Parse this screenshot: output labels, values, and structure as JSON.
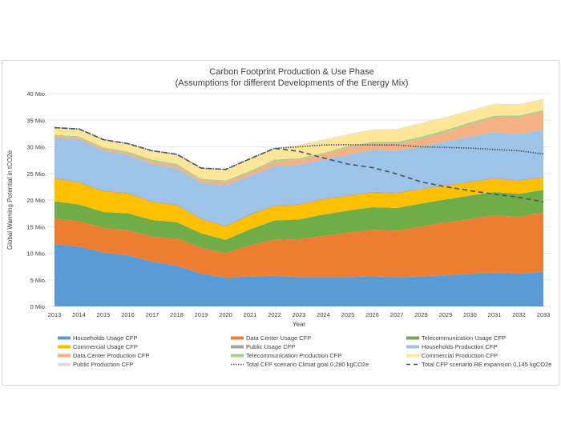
{
  "chart_data": {
    "type": "area",
    "stacked": true,
    "title": "Carbon Footprint Production & Use Phase",
    "subtitle": "(Assumptions for different Developments of the Energy Mix)",
    "xlabel": "Year",
    "ylabel": "Global Warming Potential in tCO2e",
    "ylim": [
      0,
      40
    ],
    "yticks": [
      "0 Mio.",
      "5 Mio.",
      "10 Mio.",
      "15 Mio.",
      "20 Mio.",
      "25 Mio.",
      "30 Mio.",
      "35 Mio.",
      "40 Mio."
    ],
    "ytick_values": [
      0,
      5,
      10,
      15,
      20,
      25,
      30,
      35,
      40
    ],
    "grid": "horizontal",
    "legend_position": "bottom",
    "categories": [
      "2013",
      "2014",
      "2015",
      "2016",
      "2017",
      "2018",
      "2019",
      "2020",
      "2021",
      "2022",
      "2023",
      "2024",
      "2025",
      "2026",
      "2027",
      "2028",
      "2029",
      "2030",
      "2031",
      "2032",
      "2033"
    ],
    "series": [
      {
        "name": "Households Usage CFP",
        "color": "#5b9bd5",
        "values": [
          11.75,
          11.25,
          10.15,
          9.6,
          8.4,
          7.65,
          6.15,
          5.4,
          5.65,
          5.75,
          5.5,
          5.5,
          5.5,
          5.65,
          5.5,
          5.65,
          5.85,
          6.1,
          6.35,
          6.15,
          6.5
        ]
      },
      {
        "name": "Data Center Usage CFP",
        "color": "#ed7d31",
        "values": [
          4.75,
          4.75,
          4.6,
          4.75,
          4.7,
          5.1,
          4.85,
          4.6,
          5.85,
          6.75,
          7.15,
          7.75,
          8.35,
          8.7,
          8.75,
          9.35,
          9.9,
          10.3,
          10.75,
          10.7,
          11.15
        ]
      },
      {
        "name": "Telecommunication Usage CFP",
        "color": "#70ad47",
        "values": [
          3.25,
          3.15,
          3,
          3.15,
          3.15,
          3.1,
          2.75,
          2.5,
          3,
          3.65,
          3.7,
          4,
          4.15,
          4.3,
          4.25,
          4.35,
          4.35,
          4.45,
          4.4,
          4.3,
          4.25
        ]
      },
      {
        "name": "Commercial Usage CFP",
        "color": "#ffc000",
        "values": [
          4.25,
          4.1,
          3.85,
          3.75,
          3.35,
          3.15,
          2.65,
          2.5,
          2.65,
          2.7,
          2.75,
          2.85,
          2.75,
          2.75,
          2.75,
          2.65,
          2.55,
          2.5,
          2.5,
          2.45,
          2.35
        ]
      },
      {
        "name": "Public Usage CFP",
        "color": "#a5a5a5",
        "values": [
          0.2,
          0.15,
          0.15,
          0.15,
          0.15,
          0.15,
          0.15,
          0.15,
          0.2,
          0.15,
          0.15,
          0.15,
          0.15,
          0.15,
          0.15,
          0.15,
          0.15,
          0.15,
          0.15,
          0.15,
          0.15
        ]
      },
      {
        "name": "Households Production CFP",
        "color": "#9dc3e6",
        "values": [
          7.4,
          8.1,
          7.5,
          7.1,
          7,
          6.85,
          6.7,
          7.6,
          7.15,
          7.35,
          7.35,
          7.35,
          7.6,
          7.8,
          7.85,
          7.85,
          8.2,
          8.4,
          8.6,
          8.6,
          8.85
        ]
      },
      {
        "name": "Data Center Production CFP",
        "color": "#f4b183",
        "values": [
          0.4,
          0.35,
          0.4,
          0.35,
          0.5,
          0.5,
          0.5,
          0.6,
          0.65,
          0.9,
          1,
          1,
          1.4,
          1.25,
          1.25,
          1.5,
          1.75,
          2.35,
          2.75,
          3.25,
          3.35
        ]
      },
      {
        "name": "Telecommunication Production CFP",
        "color": "#a9d18e",
        "values": [
          0.25,
          0.15,
          0.25,
          0.25,
          0.35,
          0.3,
          0.25,
          0.3,
          0.3,
          0.35,
          0.25,
          0.25,
          0.25,
          0.3,
          0.4,
          0.4,
          0.4,
          0.35,
          0.35,
          0.3,
          0.3
        ]
      },
      {
        "name": "Commercial Production CFP",
        "color": "#ffe699",
        "values": [
          1.25,
          1.25,
          1.35,
          1.4,
          1.55,
          1.7,
          1.9,
          2,
          2.15,
          2,
          2.4,
          2.4,
          2.1,
          2.25,
          2.35,
          2.5,
          2.35,
          2.15,
          2.15,
          2,
          2
        ]
      },
      {
        "name": "Public Production CFP",
        "color": "#dbdbdb",
        "values": [
          0.1,
          0.1,
          0.1,
          0.1,
          0.1,
          0.1,
          0.1,
          0.1,
          0.1,
          0.1,
          0.1,
          0.1,
          0.1,
          0.1,
          0.1,
          0.1,
          0.1,
          0.1,
          0.1,
          0.1,
          0.1
        ]
      }
    ],
    "lines": [
      {
        "name": "Total CFP scenario Climat goal 0,280 kgCO2e",
        "color": "#44546a",
        "style": "dotted",
        "values": [
          33.6,
          33.35,
          31.35,
          30.6,
          29.25,
          28.6,
          26,
          25.75,
          27.75,
          29.7,
          30,
          30.35,
          30.4,
          30.35,
          30.35,
          30,
          29.9,
          29.75,
          29.5,
          29.25,
          28.65
        ]
      },
      {
        "name": "Total CFP scenario RE expansion 0,145 kgCO2e",
        "color": "#44546a",
        "style": "dashed",
        "values": [
          33.6,
          33.35,
          31.35,
          30.6,
          29.25,
          28.6,
          26,
          25.75,
          27.75,
          29.7,
          29.15,
          27.9,
          26.75,
          26.1,
          24.9,
          23.4,
          22.5,
          21.75,
          21.1,
          20.5,
          19.65
        ]
      }
    ]
  }
}
